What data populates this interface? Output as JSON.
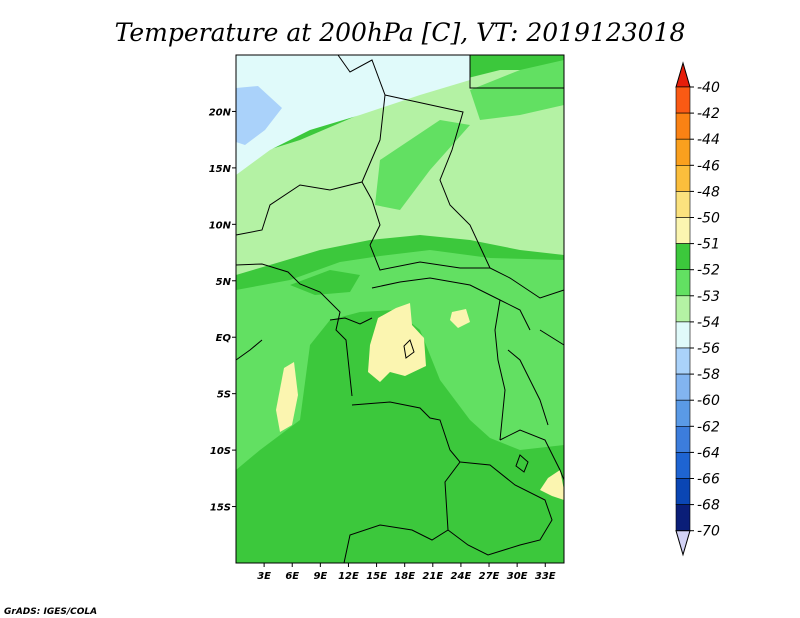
{
  "chart_data": {
    "type": "heatmap",
    "title": "Temperature at 200hPa [C], VT: 2019123018",
    "x_ticks": [
      {
        "value": 3,
        "label": "3E"
      },
      {
        "value": 6,
        "label": "6E"
      },
      {
        "value": 9,
        "label": "9E"
      },
      {
        "value": 12,
        "label": "12E"
      },
      {
        "value": 15,
        "label": "15E"
      },
      {
        "value": 18,
        "label": "18E"
      },
      {
        "value": 21,
        "label": "21E"
      },
      {
        "value": 24,
        "label": "24E"
      },
      {
        "value": 27,
        "label": "27E"
      },
      {
        "value": 30,
        "label": "30E"
      },
      {
        "value": 33,
        "label": "33E"
      }
    ],
    "y_ticks": [
      {
        "value": 20,
        "label": "20N"
      },
      {
        "value": 15,
        "label": "15N"
      },
      {
        "value": 10,
        "label": "10N"
      },
      {
        "value": 5,
        "label": "5N"
      },
      {
        "value": 0,
        "label": "EQ"
      },
      {
        "value": -5,
        "label": "5S"
      },
      {
        "value": -10,
        "label": "10S"
      },
      {
        "value": -15,
        "label": "15S"
      }
    ],
    "xlim": [
      0,
      35
    ],
    "ylim": [
      -20,
      25
    ],
    "colorbar": {
      "levels": [
        {
          "label": "-40",
          "color": "#fa3c14"
        },
        {
          "label": "-42",
          "color": "#fa5a14"
        },
        {
          "label": "-44",
          "color": "#fa8214"
        },
        {
          "label": "-46",
          "color": "#faa01e"
        },
        {
          "label": "-48",
          "color": "#fbbe3c"
        },
        {
          "label": "-50",
          "color": "#fbe27e"
        },
        {
          "label": "-51",
          "color": "#fbf5b0"
        },
        {
          "label": "-52",
          "color": "#3cc83c"
        },
        {
          "label": "-53",
          "color": "#62e062"
        },
        {
          "label": "-54",
          "color": "#b4f2a4"
        },
        {
          "label": "-56",
          "color": "#e0fafa"
        },
        {
          "label": "-58",
          "color": "#aad2fa"
        },
        {
          "label": "-60",
          "color": "#82b4f0"
        },
        {
          "label": "-62",
          "color": "#5a9ae6"
        },
        {
          "label": "-64",
          "color": "#3c7ddc"
        },
        {
          "label": "-66",
          "color": "#1e64d2"
        },
        {
          "label": "-68",
          "color": "#0a46b4"
        },
        {
          "label": "-70",
          "color": "#0a1e78"
        }
      ],
      "top_color": "#e61e0a",
      "bottom_color": "#d2d2f5"
    },
    "regions": [
      {
        "name": "north-pale-band",
        "value": -56
      },
      {
        "name": "northwest-cold-patch",
        "value": -58
      },
      {
        "name": "central-light-band",
        "value": -54
      },
      {
        "name": "equatorial-green",
        "value": -53
      },
      {
        "name": "southern-dark-green",
        "value": -52
      },
      {
        "name": "congo-basin-warm-patch",
        "value": -51
      },
      {
        "name": "coastal-warm-patch",
        "value": -51
      },
      {
        "name": "southeast-warm-patch",
        "value": -51
      }
    ]
  },
  "credit": "GrADS: IGES/COLA"
}
